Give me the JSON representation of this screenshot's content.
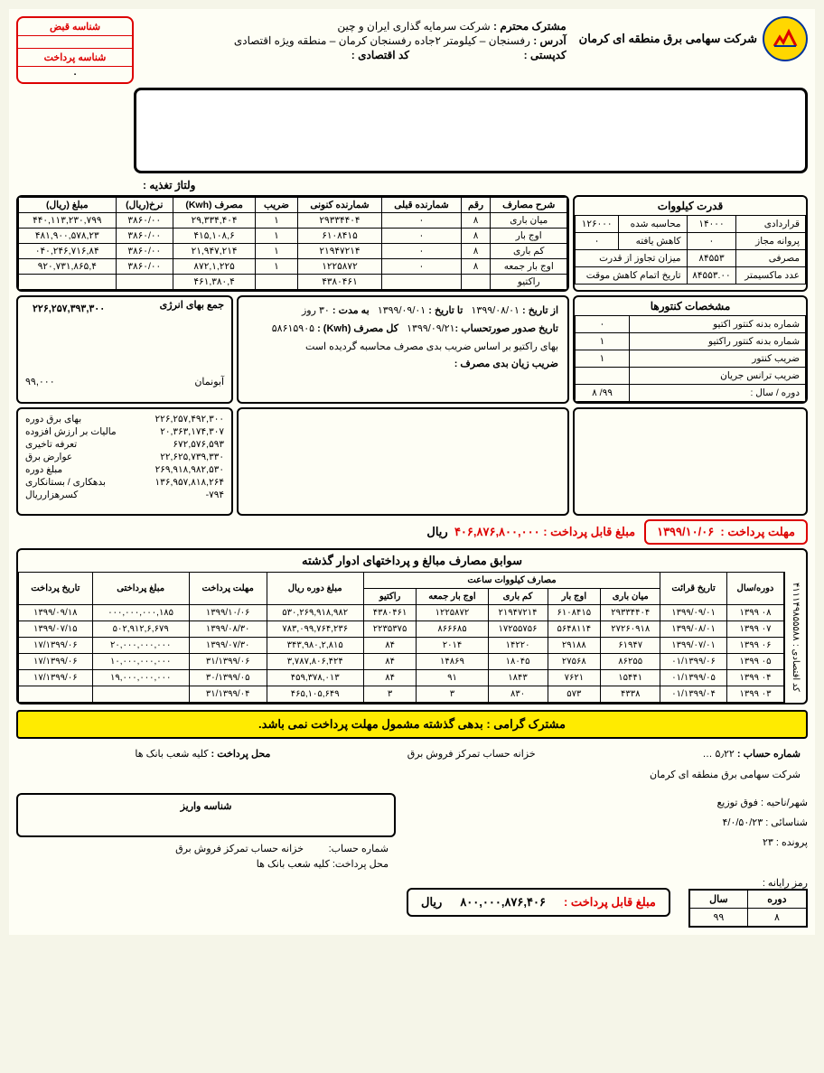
{
  "company": "شرکت سهامی برق منطقه ای کرمان",
  "customer_label": "مشترک محترم :",
  "customer_name": "شرکت سرمایه گذاری ایران و چین",
  "address_label": "آدرس :",
  "address": "رفسنجان – کیلومتر ۲جاده رفسنجان کرمان – منطقه ویژه اقتصادی",
  "postal_label": "کدپستی :",
  "econ_label": "کد اقتصادی :",
  "volt_label": "ولتاژ تغذیه :",
  "id_bill_label": "شناسه قبض",
  "id_pay_label": "شناسه پرداخت",
  "id_pay_val": "٠",
  "kw_title": "قدرت کیلووات",
  "kw": {
    "contract_l": "قراردادی",
    "contract_v": "١۴٠٠٠",
    "calc_l": "محاسبه شده",
    "calc_v": "١٢۶٠٠٠",
    "permit_l": "پروانه مجاز",
    "permit_v": "٠",
    "reduced_l": "کاهش یافته",
    "reduced_v": "٠",
    "consumed_l": "مصرفی",
    "consumed_v": "٨۴۵۵٣",
    "exceed_l": "میزان تجاوز از قدرت",
    "max_l": "عدد ماکسیمتر",
    "max_v": "٨۴۵۵٣.٠٠",
    "temp_l": "تاریخ اتمام کاهش موقت"
  },
  "usage_headers": [
    "شرح مصارف",
    "رقم",
    "شمارنده قبلی",
    "شمارنده کنونی",
    "ضریب",
    "مصرف (Kwh)",
    "نرخ(ریال)",
    "مبلغ (ریال)"
  ],
  "usage_rows": [
    [
      "میان باری",
      "٨",
      "٠",
      "٢٩٣٣۴۴٠۴",
      "١",
      "٢٩,٣٣۴,۴٠۴",
      "٣٨۶٠/٠٠",
      "١١٣,٢٣٠,٧٩٩,۴۴٠"
    ],
    [
      "اوج بار",
      "٨",
      "٠",
      "۶١٠٨۴١۵",
      "١",
      "۶,١٠٨,۴١۵",
      "٣٨۶٠/٠٠",
      "٢٣,۵٧٨,۴٨١,٩٠٠"
    ],
    [
      "کم باری",
      "٨",
      "٠",
      "٢١٩۴٧٢١۴",
      "١",
      "٢١,٩۴٧,٢١۴",
      "٣٨۶٠/٠٠",
      "٨۴,٧١۶,٢۴۶,٠۴٠"
    ],
    [
      "اوج بار جمعه",
      "٨",
      "٠",
      "١٢٢۵٨٧٢",
      "١",
      "١,٢٢۵,٨٧٢",
      "٣٨۶٠/٠٠",
      "۴,٧٣١,٨۶۵,٩٢٠"
    ],
    [
      "راکتیو",
      "",
      "",
      "۴٣٨٠۴۶١",
      "",
      "۴,٣٨٠,۴۶١",
      "",
      ""
    ]
  ],
  "meter_title": "مشخصات کنتورها",
  "meter_rows": [
    [
      "شماره بدنه کنتور اکتیو",
      "٠"
    ],
    [
      "شماره بدنه کنتور راکتیو",
      "١"
    ],
    [
      "ضریب کنتور",
      "١"
    ],
    [
      "ضریب ترانس جریان",
      ""
    ],
    [
      "دوره / سال :",
      "٩٩/ ٨"
    ]
  ],
  "period": {
    "from_l": "از تاریخ :",
    "from_v": "١٣٩٩/٠٨/٠١",
    "to_l": "تا تاریخ :",
    "to_v": "١٣٩٩/٠٩/٠١",
    "dur_l": "به مدت :",
    "dur_v": "٣٠",
    "dur_u": "روز",
    "issue_l": "تاریخ صدور صورتحساب :",
    "issue_v": "١٣٩٩/٠٩/٢١",
    "total_l": "کل مصرف (Kwh) :",
    "total_v": "۵٨۶١۵٩٠۵",
    "note1": "بهای راکتیو بر اساس ضریب بدی مصرف محاسبه گردیده است",
    "note2_l": "ضریب زیان بدی مصرف :"
  },
  "energy_title": "جمع بهای انرژی",
  "energy_total": "٢٢۶,٢۵٧,٣٩٣,٣٠٠",
  "abonman_l": "آبونمان",
  "abonman_v": "٩٩,٠٠٠",
  "breakdown": [
    [
      "بهای برق دوره",
      "٢٢۶,٢۵٧,۴٩٢,٣٠٠"
    ],
    [
      "مالیات بر ارزش افزوده",
      "٢٠,٣۶٣,١٧۴,٣٠٧"
    ],
    [
      "تعرفه تاخیری",
      "۶٧٢,۵٧۶,۵٩٣"
    ],
    [
      "عوارض برق",
      "٢٢,۶٢۵,٧٣٩,٣٣٠"
    ],
    [
      "مبلغ دوره",
      "٢۶٩,٩١٨,٩٨٢,۵٣٠"
    ],
    [
      "بدهکاری / بستانکاری",
      "١٣۶,٩۵٧,٨١٨,٢۶۴"
    ],
    [
      "کسرهزارریال",
      "-٧٩۴"
    ]
  ],
  "deadline_l": "مهلت پرداخت :",
  "deadline_v": "١٣٩٩/١٠/٠۶",
  "payable_l": "مبلغ قابل پرداخت :",
  "payable_v": "۴٠۶,٨٧۶,٨٠٠,٠٠٠",
  "rial": "ریال",
  "hist_title": "سوابق مصارف مبالغ و پرداختهای ادوار گذشته",
  "hist_kwh_group": "مصارف کیلووات ساعت",
  "hist_headers_top": [
    "دوره/سال",
    "تاریخ قرائت",
    "میان باری",
    "اوج بار",
    "کم باری",
    "اوج بار جمعه",
    "راکتیو",
    "مبلغ دوره ریال",
    "مهلت پرداخت",
    "مبلغ پرداختی",
    "تاریخ پرداخت"
  ],
  "hist_rows": [
    [
      "٠٨",
      "١٣٩٩",
      "١٣٩٩/٠٩/٠١",
      "٢٩٣٣۴۴٠۴",
      "۶١٠٨۴١۵",
      "٢١٩۴٧٢١۴",
      "١٢٢۵٨٧٢",
      "۴٣٨٠۴۶١",
      "٢۶٩,٩١٨,٩٨٢,۵٣٠",
      "١٣٩٩/١٠/٠۶",
      "١٨۵,٠٠٠,٠٠٠,٠٠٠",
      "١٣٩٩/٠٩/١٨"
    ],
    [
      "٠٧",
      "١٣٩٩",
      "١٣٩٩/٠٨/٠١",
      "٢٧٢۶٠٩١٨",
      "۵۶۴٨١١۴",
      "١٧٢۵۵٧۵۶",
      "٨۶۶۶٨۵",
      "٢٢٣۵٣٧۵",
      "٢٣۶,٧۶۴,٧٨٣,٠٩٩",
      "١٣٩٩/٠٨/٣٠",
      "۶,۶٧٩,۵٠٢,٩١٢",
      "١٣٩٩/٠٧/١۵"
    ],
    [
      "٠۶",
      "١٣٩٩",
      "١٣٩٩/٠٧/٠١",
      "۶١٩۴٧",
      "٢٩١٨٨",
      "١۴٢٢٠",
      "٢٠١۴",
      "٨۴",
      "٢,٨١۵,٣۴٣,٩٨٠",
      "١٣٩٩/٠٧/٣٠",
      "٢٠,٠٠٠,٠٠٠,٠٠٠",
      "١٣٩٩/٠۶/١٧"
    ],
    [
      "٠۵",
      "١٣٩٩",
      "١٣٩٩/٠۶/٠١",
      "٨۶٢۵۵",
      "٢٧۵۶٨",
      "١٨٠۴۵",
      "١۴٨۶٩",
      "٨۴",
      "٣,٧٨٧,٨٠۶,۴٢۴",
      "١٣٩٩/٠۶/٣١",
      "١٠,٠٠٠,٠٠٠,٠٠٠",
      "١٣٩٩/٠۶/١٧"
    ],
    [
      "٠۴",
      "١٣٩٩",
      "١٣٩٩/٠۵/٠١",
      "١۵۴۴١",
      "٧۶٢١",
      "١٨۴٣",
      "٩١",
      "٨۴",
      "۴۵٩,٣٧٨,٠١٣",
      "١٣٩٩/٠۵/٣٠",
      "١٩,٠٠٠,٠٠٠,٠٠٠",
      "١٣٩٩/٠۶/١٧"
    ],
    [
      "٠٣",
      "١٣٩٩",
      "١٣٩٩/٠۴/٠١",
      "۴٣٣٨",
      "۵٧٣",
      "٨٣٠",
      "٣",
      "٣",
      "١٠۵,۶۴٩,۴۶۵",
      "١٣٩٩/٠۴/٣١",
      "",
      ""
    ]
  ],
  "econ_side_l": "کد اقتصادی :",
  "econ_side_v": "۴١١١۴٩٨۵۵۵٨٨",
  "yellow_msg": "مشترک گرامی : بدهی گذشته مشمول مهلت پرداخت نمی باشد.",
  "acct_l": "شماره حساب :",
  "acct_v": "۵٫٢٢ …",
  "treasury": "خزانه حساب تمرکز فروش برق",
  "payloc_l": "محل پرداخت :",
  "payloc_v": "کلیه شعب بانک ها",
  "company2": "شرکت سهامی برق منطقه ای کرمان",
  "city_l": "شهر/ناحیه :",
  "city_v": "فوق توزیع",
  "ident_l": "شناسائی :",
  "ident_v": "۴/٠/۵٠/٢٣",
  "file_l": "پرونده :",
  "file_v": "٢٣",
  "deposit_title": "شناسه واریز",
  "deposit_acct_l": "شماره حساب:",
  "deposit_treasury": "خزانه حساب تمرکز فروش برق",
  "deposit_loc_l": "محل پرداخت:",
  "deposit_loc_v": "کلیه شعب بانک ها",
  "ramz_l": "رمز رایانه :",
  "ramz_h": [
    "دوره",
    "سال"
  ],
  "ramz_r": [
    "٨",
    "٩٩"
  ],
  "final_l": "مبلغ قابل پرداخت :",
  "final_v": "۴٠۶,٨٧۶,٨٠٠,٠٠٠"
}
